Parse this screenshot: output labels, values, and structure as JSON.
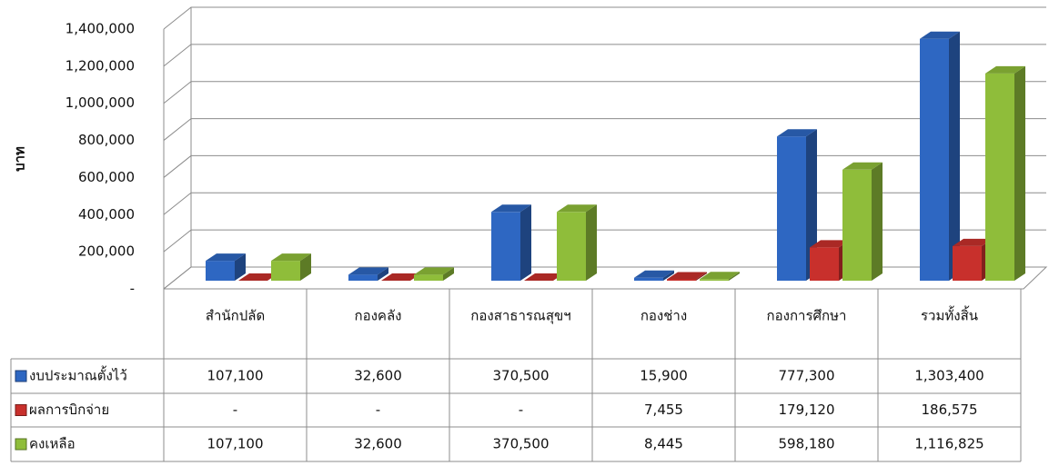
{
  "chart_data": {
    "type": "bar3d",
    "y_axis_label": "บาท",
    "categories": [
      "สำนักปลัด",
      "กองคลัง",
      "กองสาธารณสุขฯ",
      "กองช่าง",
      "กองการศึกษา",
      "รวมทั้งสิ้น"
    ],
    "series": [
      {
        "name": "งบประมาณตั้งไว้",
        "color": "#2e67c2",
        "values": [
          107100,
          32600,
          370500,
          15900,
          777300,
          1303400
        ],
        "value_labels": [
          "107,100",
          "32,600",
          "370,500",
          "15,900",
          "777,300",
          "1,303,400"
        ]
      },
      {
        "name": "ผลการบิกจ่าย",
        "color": "#c8302c",
        "values": [
          0,
          0,
          0,
          7455,
          179120,
          186575
        ],
        "value_labels": [
          "-",
          "-",
          "-",
          "7,455",
          "179,120",
          "186,575"
        ]
      },
      {
        "name": "คงเหลือ",
        "color": "#8fbd3a",
        "values": [
          107100,
          32600,
          370500,
          8445,
          598180,
          1116825
        ],
        "value_labels": [
          "107,100",
          "32,600",
          "370,500",
          "8,445",
          "598,180",
          "1,116,825"
        ]
      }
    ],
    "ylim": [
      0,
      1400000
    ],
    "yticks": [
      {
        "value": 0,
        "label": "-"
      },
      {
        "value": 200000,
        "label": "200,000"
      },
      {
        "value": 400000,
        "label": "400,000"
      },
      {
        "value": 600000,
        "label": "600,000"
      },
      {
        "value": 800000,
        "label": "800,000"
      },
      {
        "value": 1000000,
        "label": "1,000,000"
      },
      {
        "value": 1200000,
        "label": "1,200,000"
      },
      {
        "value": 1400000,
        "label": "1,400,000"
      }
    ],
    "grid": true
  }
}
